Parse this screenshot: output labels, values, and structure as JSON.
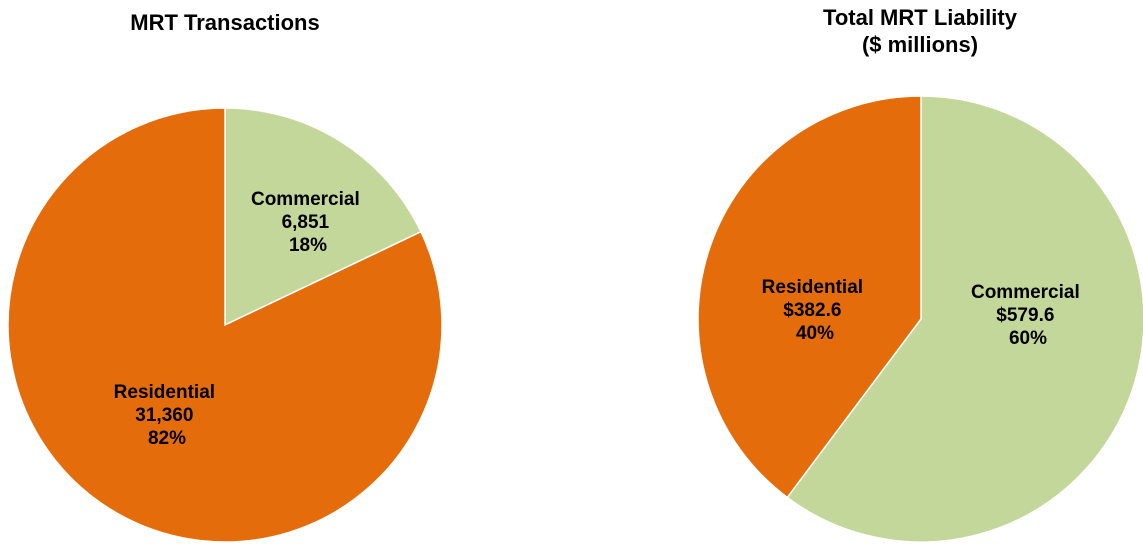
{
  "chart_data": [
    {
      "type": "pie",
      "title": "MRT Transactions",
      "subtitle": "",
      "start_angle_deg": 0,
      "direction": "clockwise",
      "slices": [
        {
          "category": "Commercial",
          "value": 6851,
          "value_label": "6,851",
          "percent_label": "18%",
          "color": "#c4d79b"
        },
        {
          "category": "Residential",
          "value": 31360,
          "value_label": "31,360",
          "percent_label": "82%",
          "color": "#e46c0a"
        }
      ]
    },
    {
      "type": "pie",
      "title": "Total MRT Liability",
      "subtitle": "($ millions)",
      "start_angle_deg": 0,
      "direction": "clockwise",
      "slices": [
        {
          "category": "Commercial",
          "value": 579.6,
          "value_label": "$579.6",
          "percent_label": "60%",
          "color": "#c4d79b"
        },
        {
          "category": "Residential",
          "value": 382.6,
          "value_label": "$382.6",
          "percent_label": "40%",
          "color": "#e46c0a"
        }
      ]
    }
  ]
}
